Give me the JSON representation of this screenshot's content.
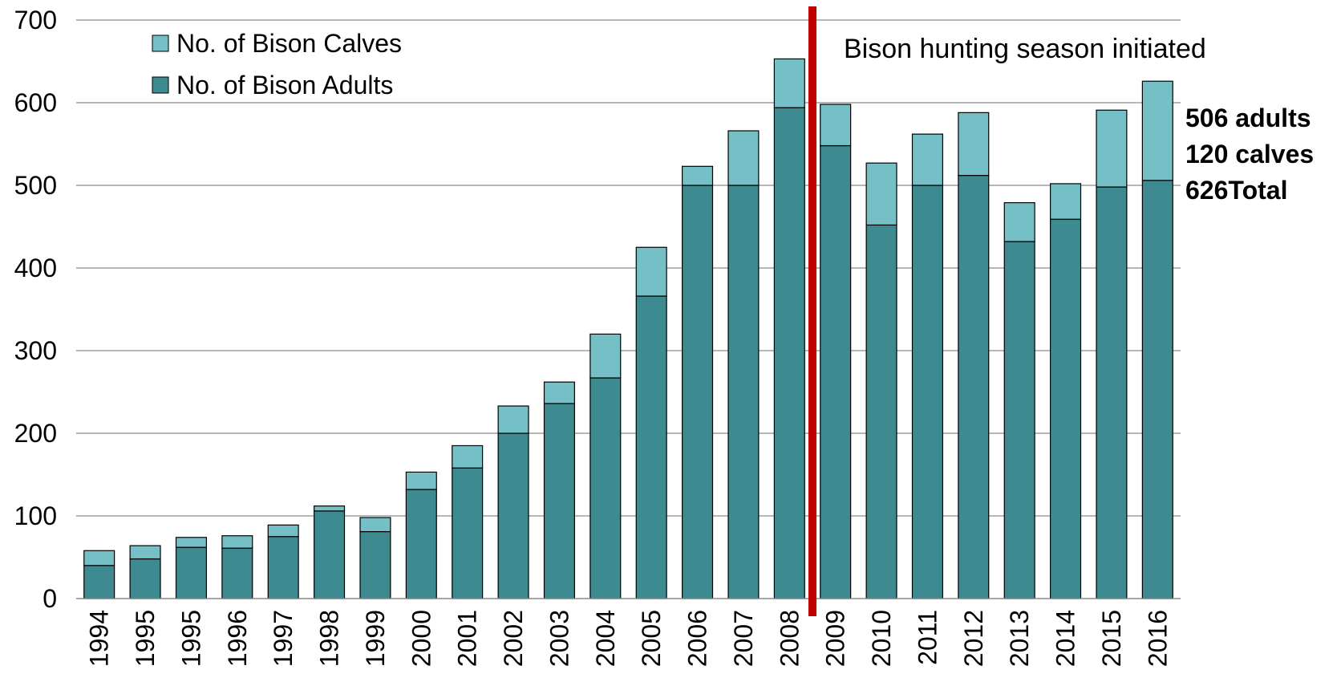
{
  "chart_data": {
    "type": "bar",
    "stacked": true,
    "categories": [
      "1994",
      "1995",
      "1995",
      "1996",
      "1997",
      "1998",
      "1999",
      "2000",
      "2001",
      "2002",
      "2003",
      "2004",
      "2005",
      "2006",
      "2007",
      "2008",
      "2009",
      "2010",
      "2011",
      "2012",
      "2013",
      "2014",
      "2015",
      "2016"
    ],
    "series": [
      {
        "name": "No. of Bison Adults",
        "color": "#3d8b90",
        "values": [
          40,
          48,
          62,
          61,
          75,
          106,
          81,
          132,
          158,
          200,
          236,
          267,
          366,
          500,
          500,
          594,
          548,
          452,
          500,
          512,
          432,
          459,
          498,
          506
        ]
      },
      {
        "name": "No. of Bison Calves",
        "color": "#75c0c6",
        "values": [
          18,
          16,
          12,
          15,
          14,
          6,
          17,
          21,
          27,
          33,
          26,
          53,
          59,
          23,
          66,
          59,
          50,
          75,
          62,
          76,
          47,
          43,
          93,
          120
        ]
      }
    ],
    "ylim": [
      0,
      700
    ],
    "yticks": [
      0,
      100,
      200,
      300,
      400,
      500,
      600,
      700
    ],
    "grid": true,
    "legend_position": "top-left",
    "marker": {
      "after_category": "2008",
      "label": "Bison hunting season initiated",
      "color": "#c00000"
    },
    "annotation": {
      "lines": [
        "506 adults",
        "120 calves",
        "626Total"
      ]
    }
  }
}
